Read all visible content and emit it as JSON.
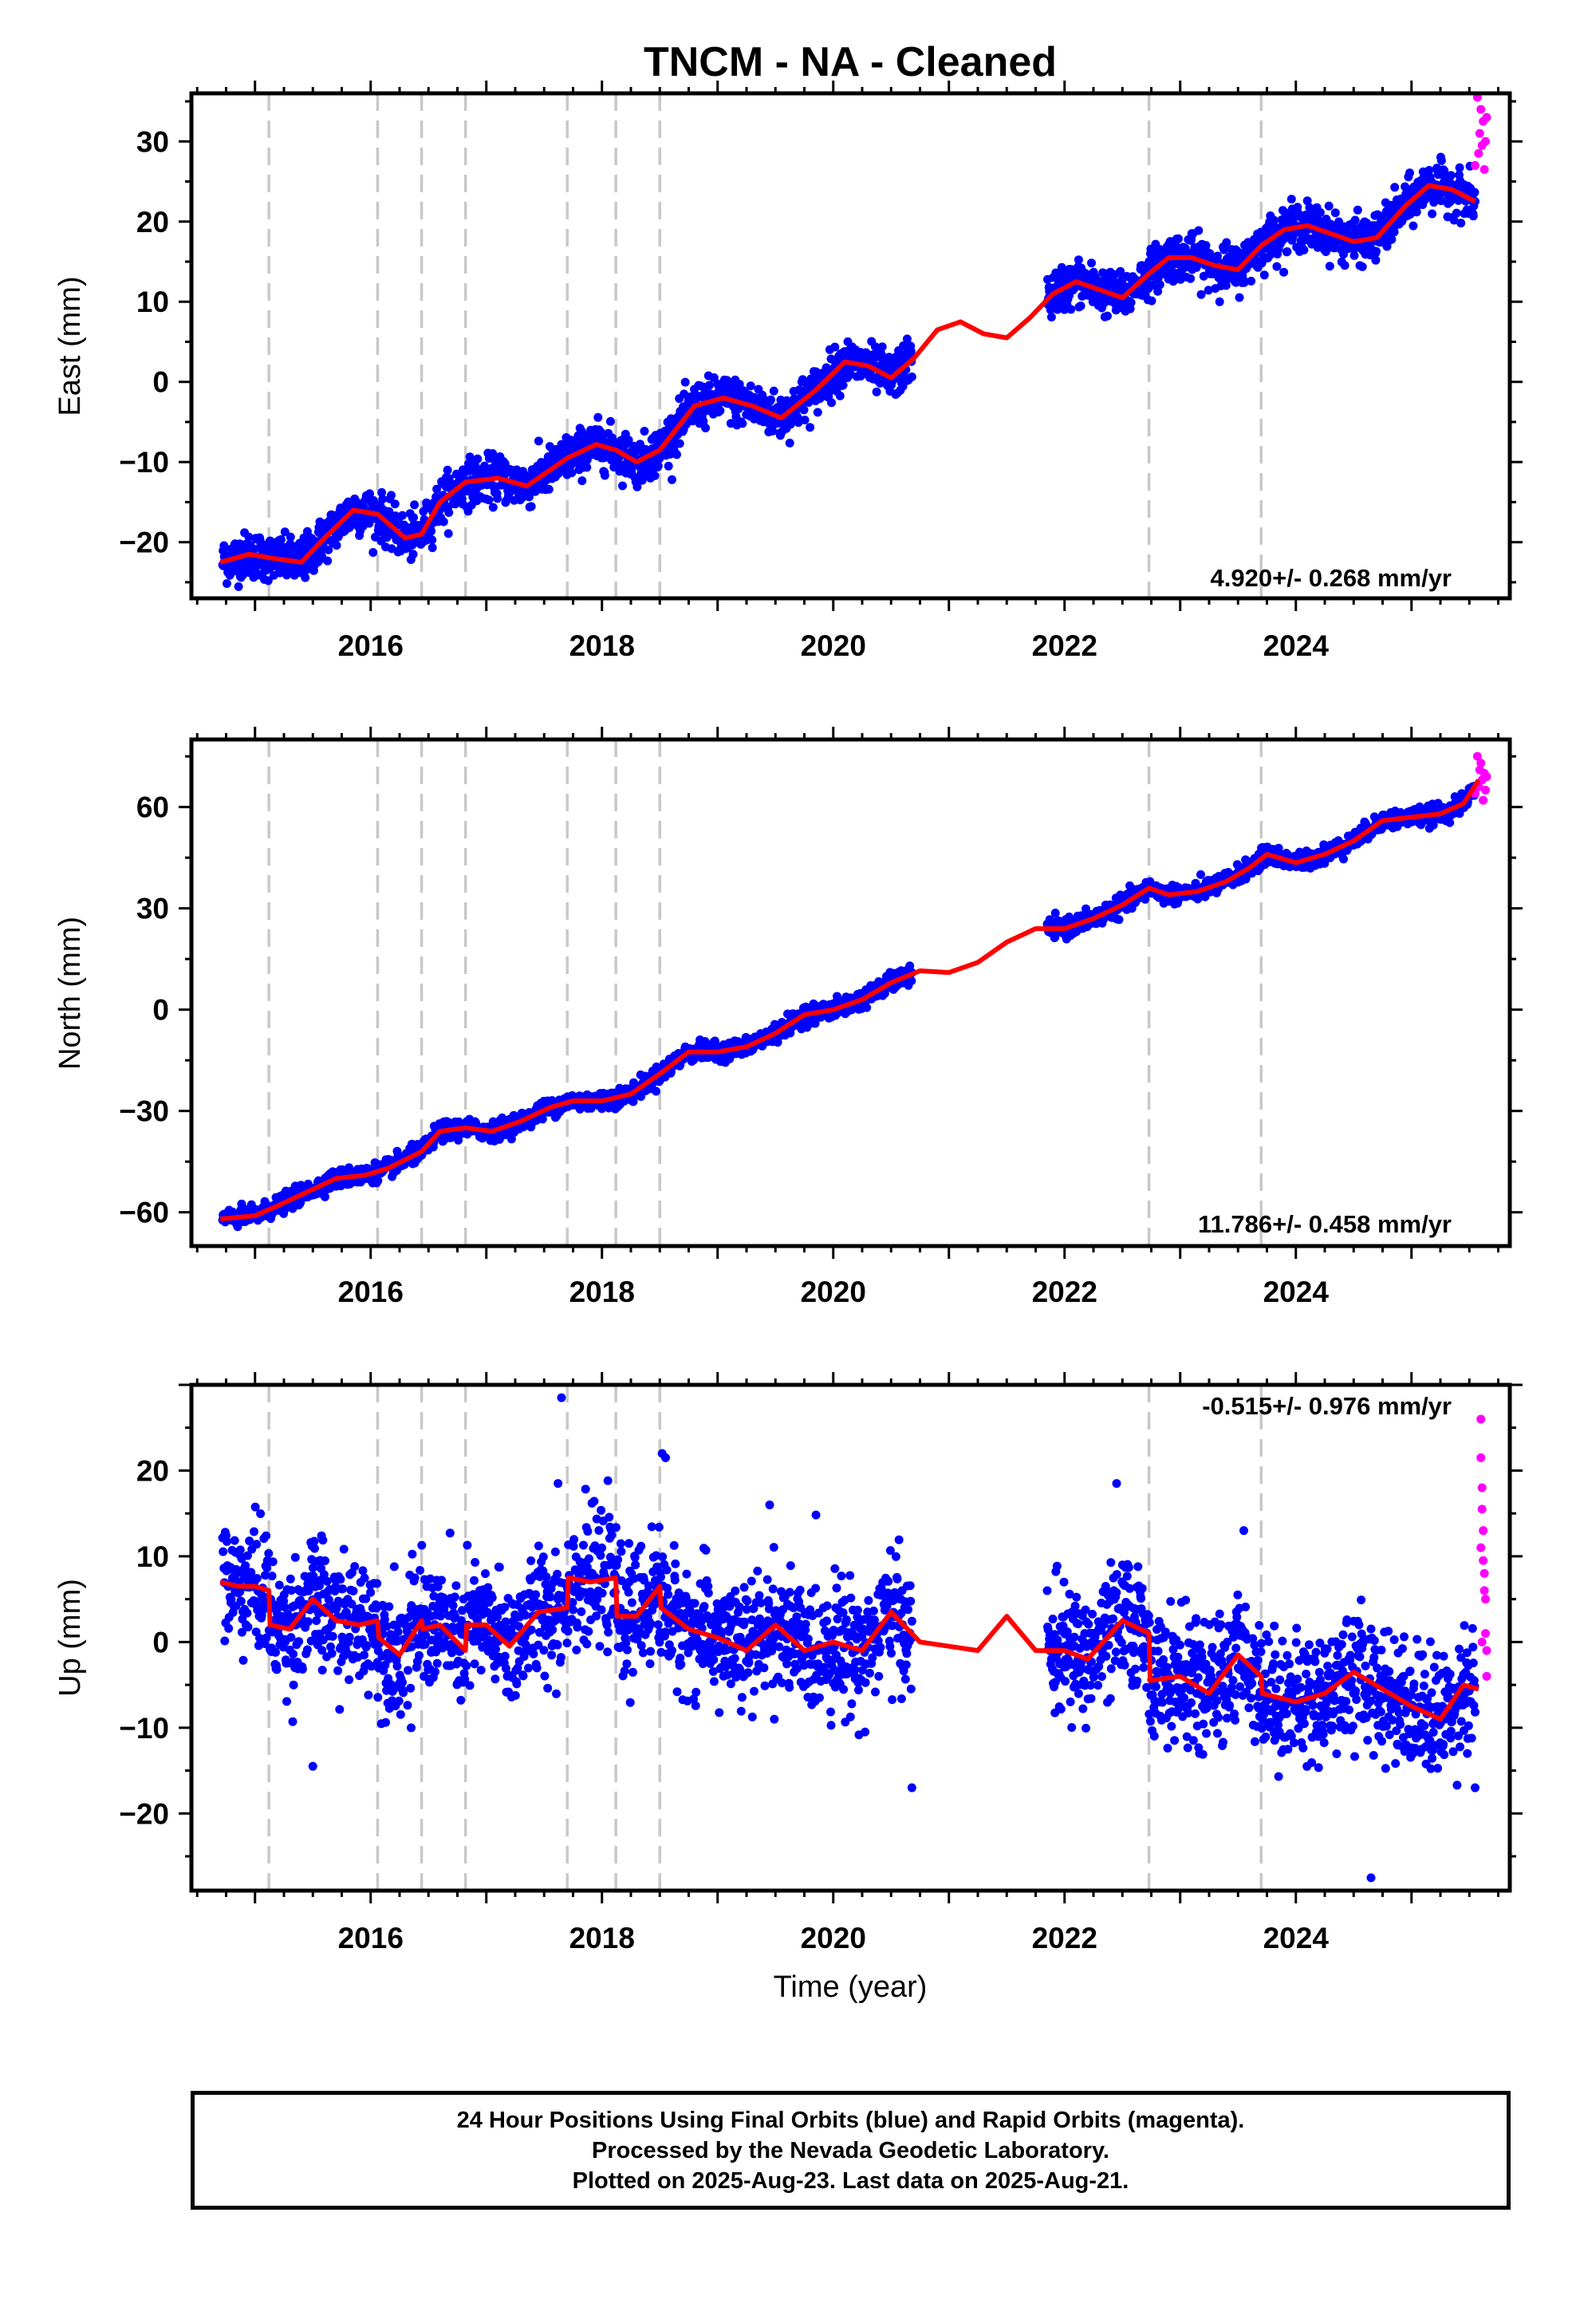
{
  "title": "TNCM  - NA - Cleaned",
  "xlabel": "Time (year)",
  "colors": {
    "final": "#0000ff",
    "rapid": "#ff00ff",
    "model": "#ff0000",
    "steps": "#c8c8c8",
    "frame": "#000000"
  },
  "footer": {
    "line1": "24 Hour Positions Using Final Orbits (blue) and Rapid Orbits (magenta).",
    "line2": "Processed by the Nevada Geodetic Laboratory.",
    "line3": "Plotted on 2025-Aug-23. Last data on 2025-Aug-21."
  },
  "chart_data": [
    {
      "type": "scatter",
      "component": "East",
      "ylabel": "East (mm)",
      "rate_label": "4.920+/- 0.268 mm/yr",
      "xlim": [
        2014.45,
        2025.85
      ],
      "ylim": [
        -27,
        36
      ],
      "xticks": [
        2016,
        2018,
        2020,
        2022,
        2024
      ],
      "yticks": [
        -20,
        -10,
        0,
        10,
        20,
        30
      ],
      "step_lines": [
        2015.12,
        2016.06,
        2016.44,
        2016.82,
        2017.7,
        2018.12,
        2018.5,
        2022.73,
        2023.7
      ],
      "model_curve": {
        "x": [
          2014.7,
          2014.95,
          2015.15,
          2015.4,
          2015.6,
          2015.85,
          2016.06,
          2016.3,
          2016.44,
          2016.6,
          2016.82,
          2017.1,
          2017.35,
          2017.7,
          2017.95,
          2018.12,
          2018.3,
          2018.5,
          2018.8,
          2019.05,
          2019.3,
          2019.55,
          2019.85,
          2020.1,
          2020.3,
          2020.5,
          2020.7,
          2020.9,
          2021.1,
          2021.3,
          2021.5,
          2021.7,
          2021.9,
          2022.1,
          2022.3,
          2022.5,
          2022.73,
          2022.9,
          2023.1,
          2023.3,
          2023.5,
          2023.7,
          2023.9,
          2024.1,
          2024.3,
          2024.5,
          2024.7,
          2024.95,
          2025.15,
          2025.35,
          2025.55
        ],
        "y": [
          -22.5,
          -21.5,
          -22.0,
          -22.5,
          -19.5,
          -16.0,
          -16.5,
          -19.5,
          -19.0,
          -15.0,
          -12.5,
          -12.0,
          -13.0,
          -9.5,
          -7.8,
          -8.5,
          -10.0,
          -8.5,
          -3.0,
          -2.0,
          -3.0,
          -4.5,
          -1.0,
          2.5,
          2.0,
          0.5,
          3.0,
          6.5,
          7.5,
          6.0,
          5.5,
          8.0,
          11.0,
          12.5,
          11.5,
          10.5,
          13.5,
          15.5,
          15.5,
          14.5,
          14.0,
          17.0,
          19.0,
          19.5,
          18.5,
          17.5,
          18.0,
          22.0,
          24.5,
          24.0,
          22.5
        ]
      },
      "final_data": {
        "segments": [
          [
            2014.72,
            2020.68
          ],
          [
            2021.85,
            2025.55
          ]
        ],
        "count": 2600,
        "scatter_mm": 1.4,
        "outliers": []
      },
      "rapid_data": {
        "x": [
          2025.55,
          2025.57,
          2025.58,
          2025.59,
          2025.6,
          2025.61,
          2025.62,
          2025.63,
          2025.64,
          2025.65
        ],
        "y": [
          27.0,
          35.5,
          28.5,
          31.0,
          34.0,
          29.5,
          32.5,
          26.5,
          30.0,
          33.0
        ]
      }
    },
    {
      "type": "scatter",
      "component": "North",
      "ylabel": "North (mm)",
      "rate_label": "11.786+/- 0.458 mm/yr",
      "xlim": [
        2014.45,
        2025.85
      ],
      "ylim": [
        -70,
        80
      ],
      "xticks": [
        2016,
        2018,
        2020,
        2022,
        2024
      ],
      "yticks": [
        -60,
        -30,
        0,
        30,
        60
      ],
      "step_lines": [
        2015.12,
        2016.06,
        2016.44,
        2016.82,
        2017.7,
        2018.12,
        2018.5,
        2022.73,
        2023.7
      ],
      "model_curve": {
        "x": [
          2014.7,
          2015.0,
          2015.2,
          2015.45,
          2015.7,
          2015.95,
          2016.15,
          2016.44,
          2016.6,
          2016.82,
          2017.05,
          2017.3,
          2017.55,
          2017.75,
          2018.0,
          2018.25,
          2018.5,
          2018.75,
          2019.0,
          2019.25,
          2019.5,
          2019.75,
          2020.0,
          2020.25,
          2020.5,
          2020.75,
          2021.0,
          2021.25,
          2021.5,
          2021.75,
          2022.0,
          2022.25,
          2022.5,
          2022.73,
          2022.9,
          2023.15,
          2023.4,
          2023.6,
          2023.75,
          2024.0,
          2024.25,
          2024.5,
          2024.75,
          2025.0,
          2025.25,
          2025.45,
          2025.58
        ],
        "y": [
          -62.0,
          -61.0,
          -58.0,
          -54.0,
          -50.0,
          -49.0,
          -47.0,
          -42.0,
          -36.0,
          -35.0,
          -36.0,
          -33.0,
          -29.0,
          -27.0,
          -27.0,
          -25.0,
          -19.0,
          -12.5,
          -12.5,
          -11.0,
          -7.0,
          -1.5,
          0.0,
          3.0,
          8.0,
          11.5,
          11.0,
          14.0,
          20.0,
          24.0,
          24.0,
          27.0,
          31.0,
          36.0,
          34.0,
          35.0,
          38.0,
          42.0,
          46.0,
          43.5,
          46.0,
          50.0,
          56.0,
          57.0,
          58.0,
          61.0,
          68.0
        ]
      },
      "final_data": {
        "segments": [
          [
            2014.72,
            2020.68
          ],
          [
            2021.85,
            2025.55
          ]
        ],
        "count": 2600,
        "scatter_mm": 1.3,
        "outliers": []
      },
      "rapid_data": {
        "x": [
          2025.55,
          2025.57,
          2025.58,
          2025.59,
          2025.6,
          2025.61,
          2025.62,
          2025.63,
          2025.64,
          2025.65
        ],
        "y": [
          64.0,
          75.0,
          66.0,
          71.0,
          73.0,
          68.0,
          62.0,
          70.0,
          65.0,
          69.0
        ]
      }
    },
    {
      "type": "scatter",
      "component": "Up",
      "ylabel": "Up (mm)",
      "rate_label": "-0.515+/- 0.976 mm/yr",
      "xlim": [
        2014.45,
        2025.85
      ],
      "ylim": [
        -29,
        30
      ],
      "xticks": [
        2016,
        2018,
        2020,
        2022,
        2024
      ],
      "yticks": [
        -20,
        -10,
        0,
        10,
        20
      ],
      "step_lines": [
        2015.12,
        2016.06,
        2016.44,
        2016.82,
        2017.7,
        2018.12,
        2018.5,
        2022.73,
        2023.7
      ],
      "model_curve": {
        "x": [
          2014.7,
          2014.85,
          2015.0,
          2015.12,
          2015.13,
          2015.3,
          2015.5,
          2015.7,
          2015.9,
          2016.06,
          2016.07,
          2016.25,
          2016.44,
          2016.45,
          2016.6,
          2016.82,
          2016.83,
          2017.0,
          2017.2,
          2017.45,
          2017.7,
          2017.71,
          2017.9,
          2018.12,
          2018.13,
          2018.3,
          2018.5,
          2018.51,
          2018.75,
          2019.0,
          2019.25,
          2019.5,
          2019.75,
          2020.0,
          2020.25,
          2020.5,
          2020.75,
          2021.0,
          2021.25,
          2021.5,
          2021.75,
          2022.0,
          2022.2,
          2022.5,
          2022.73,
          2022.74,
          2023.0,
          2023.25,
          2023.5,
          2023.7,
          2023.71,
          2024.0,
          2024.25,
          2024.5,
          2024.75,
          2025.0,
          2025.25,
          2025.45,
          2025.58
        ],
        "y": [
          7.0,
          6.5,
          6.5,
          6.0,
          2.0,
          1.5,
          5.0,
          2.5,
          2.0,
          2.5,
          0.5,
          -1.5,
          2.5,
          1.5,
          2.0,
          -1.0,
          2.0,
          2.0,
          -0.5,
          3.5,
          4.0,
          7.5,
          7.0,
          7.5,
          3.0,
          3.0,
          6.5,
          4.0,
          1.5,
          0.5,
          -1.0,
          2.0,
          -1.0,
          0.0,
          -1.0,
          3.5,
          0.0,
          -0.5,
          -1.0,
          3.0,
          -1.0,
          -1.0,
          -2.0,
          2.5,
          1.0,
          -4.5,
          -4.0,
          -6.0,
          -1.5,
          -4.0,
          -6.0,
          -7.0,
          -6.0,
          -3.5,
          -5.5,
          -7.5,
          -9.0,
          -5.0,
          -5.5
        ]
      },
      "final_data": {
        "segments": [
          [
            2014.72,
            2020.68
          ],
          [
            2021.85,
            2025.55
          ]
        ],
        "count": 2600,
        "scatter_mm": 3.6,
        "outliers": [
          [
            2017.65,
            28.5
          ],
          [
            2018.55,
            21.5
          ],
          [
            2018.52,
            22.0
          ],
          [
            2024.65,
            -27.5
          ],
          [
            2016.35,
            -10.0
          ],
          [
            2015.5,
            -14.5
          ],
          [
            2020.68,
            -17.0
          ],
          [
            2025.55,
            -17.0
          ],
          [
            2022.45,
            18.5
          ],
          [
            2023.55,
            13.0
          ],
          [
            2019.45,
            16.0
          ],
          [
            2017.62,
            18.5
          ]
        ]
      },
      "rapid_data": {
        "x": [
          2025.6,
          2025.6,
          2025.61,
          2025.61,
          2025.62,
          2025.62,
          2025.63,
          2025.63,
          2025.64,
          2025.64,
          2025.65,
          2025.65,
          2025.6,
          2025.61
        ],
        "y": [
          26.0,
          21.5,
          18.0,
          15.5,
          13.0,
          9.5,
          8.0,
          6.0,
          5.0,
          1.0,
          -1.0,
          -4.0,
          11.0,
          0.0
        ]
      }
    }
  ]
}
